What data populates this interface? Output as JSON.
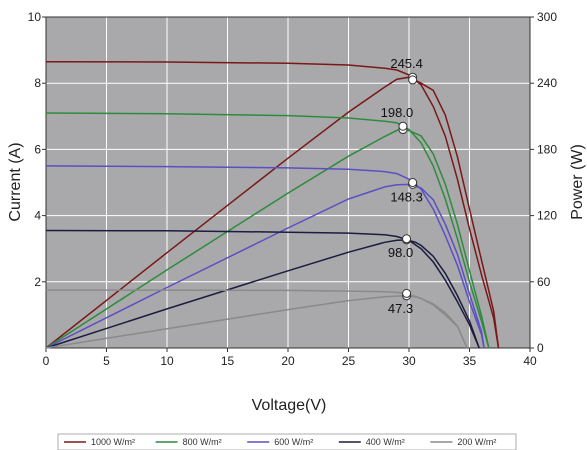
{
  "chart_data": {
    "type": "line",
    "xlabel": "Voltage(V)",
    "ylabel_left": "Current (A)",
    "ylabel_right": "Power (W)",
    "xlim": [
      0,
      40
    ],
    "ylim_left": [
      0,
      10
    ],
    "ylim_right": [
      0,
      300
    ],
    "x_ticks": [
      0,
      5,
      10,
      15,
      20,
      25,
      30,
      35,
      40
    ],
    "y_ticks_left": [
      2,
      4,
      6,
      8,
      10
    ],
    "y_ticks_right": [
      0,
      60,
      120,
      180,
      240,
      300
    ],
    "grid": true,
    "background": "#a9a9ab",
    "legend_position": "bottom",
    "series": [
      {
        "name": "1000 W/m²",
        "color": "#7a1818",
        "iv": [
          [
            0,
            8.65
          ],
          [
            10,
            8.64
          ],
          [
            20,
            8.6
          ],
          [
            25,
            8.55
          ],
          [
            28,
            8.45
          ],
          [
            29,
            8.4
          ],
          [
            30,
            8.25
          ],
          [
            31,
            7.95
          ],
          [
            32,
            7.3
          ],
          [
            33,
            6.4
          ],
          [
            34,
            5.1
          ],
          [
            35,
            3.6
          ],
          [
            36,
            2.2
          ],
          [
            37,
            0.9
          ],
          [
            37.4,
            0
          ]
        ],
        "pv": [
          [
            0,
            0
          ],
          [
            10,
            86.4
          ],
          [
            20,
            172
          ],
          [
            25,
            213.8
          ],
          [
            28,
            236.6
          ],
          [
            29,
            243.6
          ],
          [
            30,
            245.4
          ],
          [
            31,
            240
          ],
          [
            32,
            233.6
          ],
          [
            33,
            211.2
          ],
          [
            34,
            173.4
          ],
          [
            35,
            126
          ],
          [
            36,
            79.2
          ],
          [
            37,
            33.3
          ],
          [
            37.4,
            0
          ]
        ],
        "peak": {
          "v": 30.3,
          "p": 245.4,
          "i": 8.1,
          "label": "245.4"
        }
      },
      {
        "name": "800 W/m²",
        "color": "#2e8b3e",
        "iv": [
          [
            0,
            7.1
          ],
          [
            10,
            7.08
          ],
          [
            20,
            7.02
          ],
          [
            25,
            6.95
          ],
          [
            28,
            6.85
          ],
          [
            29,
            6.8
          ],
          [
            30,
            6.6
          ],
          [
            31,
            6.2
          ],
          [
            32,
            5.5
          ],
          [
            33,
            4.5
          ],
          [
            34,
            3.3
          ],
          [
            35,
            2.0
          ],
          [
            36,
            0.8
          ],
          [
            36.6,
            0
          ]
        ],
        "pv": [
          [
            0,
            0
          ],
          [
            10,
            70.8
          ],
          [
            20,
            140.4
          ],
          [
            25,
            173.8
          ],
          [
            28,
            191.8
          ],
          [
            29,
            197.2
          ],
          [
            29.5,
            198
          ],
          [
            30,
            197
          ],
          [
            31,
            192.2
          ],
          [
            32,
            176
          ],
          [
            33,
            148.5
          ],
          [
            34,
            112.2
          ],
          [
            35,
            70
          ],
          [
            36,
            28.8
          ],
          [
            36.6,
            0
          ]
        ],
        "peak": {
          "v": 29.5,
          "p": 198.0,
          "i": 6.7,
          "label": "198.0"
        }
      },
      {
        "name": "600 W/m²",
        "color": "#5b4fc4",
        "iv": [
          [
            0,
            5.5
          ],
          [
            10,
            5.48
          ],
          [
            20,
            5.44
          ],
          [
            25,
            5.4
          ],
          [
            28,
            5.33
          ],
          [
            29,
            5.27
          ],
          [
            30,
            5.1
          ],
          [
            31,
            4.8
          ],
          [
            32,
            4.2
          ],
          [
            33,
            3.4
          ],
          [
            34,
            2.5
          ],
          [
            35,
            1.4
          ],
          [
            36,
            0.4
          ],
          [
            36.2,
            0
          ]
        ],
        "pv": [
          [
            0,
            0
          ],
          [
            10,
            54.8
          ],
          [
            20,
            108.8
          ],
          [
            25,
            135
          ],
          [
            28,
            146
          ],
          [
            29,
            148
          ],
          [
            30,
            148.3
          ],
          [
            31,
            145
          ],
          [
            32,
            134.4
          ],
          [
            33,
            112.2
          ],
          [
            34,
            85
          ],
          [
            35,
            49
          ],
          [
            36,
            14.4
          ],
          [
            36.2,
            0
          ]
        ],
        "peak": {
          "v": 30.3,
          "p": 148.3,
          "i": 5.0,
          "label": "148.3"
        }
      },
      {
        "name": "400 W/m²",
        "color": "#1c1c40",
        "iv": [
          [
            0,
            3.55
          ],
          [
            10,
            3.54
          ],
          [
            20,
            3.5
          ],
          [
            25,
            3.47
          ],
          [
            28,
            3.42
          ],
          [
            29,
            3.37
          ],
          [
            30,
            3.25
          ],
          [
            31,
            3.0
          ],
          [
            32,
            2.6
          ],
          [
            33,
            2.05
          ],
          [
            34,
            1.4
          ],
          [
            35,
            0.7
          ],
          [
            35.8,
            0
          ]
        ],
        "pv": [
          [
            0,
            0
          ],
          [
            10,
            35.4
          ],
          [
            20,
            70
          ],
          [
            25,
            86.8
          ],
          [
            28,
            95.8
          ],
          [
            29,
            97.7
          ],
          [
            29.8,
            98
          ],
          [
            30.5,
            96
          ],
          [
            31,
            93
          ],
          [
            32,
            83.2
          ],
          [
            33,
            67.7
          ],
          [
            34,
            47.6
          ],
          [
            35,
            24.5
          ],
          [
            35.8,
            0
          ]
        ],
        "peak": {
          "v": 29.8,
          "p": 98.0,
          "i": 3.3,
          "label": "98.0"
        }
      },
      {
        "name": "200 W/m²",
        "color": "#8a8a8a",
        "iv": [
          [
            0,
            1.75
          ],
          [
            10,
            1.75
          ],
          [
            20,
            1.74
          ],
          [
            25,
            1.72
          ],
          [
            28,
            1.7
          ],
          [
            29,
            1.68
          ],
          [
            30,
            1.62
          ],
          [
            31,
            1.5
          ],
          [
            32,
            1.3
          ],
          [
            33,
            1.0
          ],
          [
            34,
            0.65
          ],
          [
            34.8,
            0
          ]
        ],
        "pv": [
          [
            0,
            0
          ],
          [
            10,
            17.5
          ],
          [
            20,
            34.8
          ],
          [
            25,
            43
          ],
          [
            28,
            46.5
          ],
          [
            29,
            47
          ],
          [
            29.8,
            47.3
          ],
          [
            30.5,
            46.5
          ],
          [
            31,
            45
          ],
          [
            32,
            40
          ],
          [
            33,
            32
          ],
          [
            34,
            20
          ],
          [
            34.8,
            0
          ]
        ],
        "peak": {
          "v": 29.8,
          "p": 47.3,
          "i": 1.65,
          "label": "47.3"
        }
      }
    ]
  }
}
